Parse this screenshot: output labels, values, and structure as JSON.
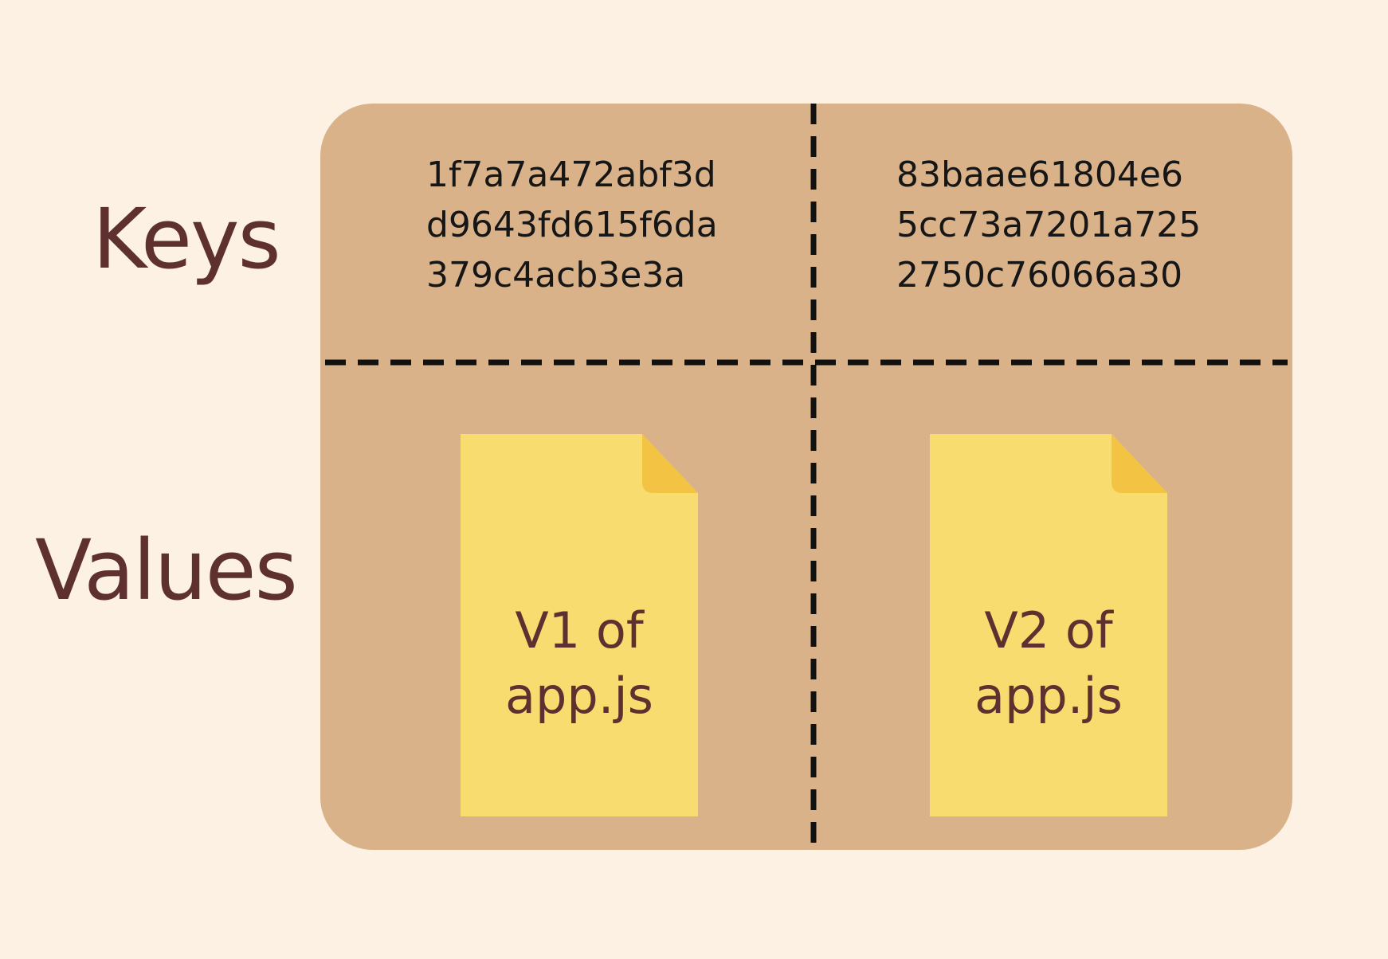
{
  "labels": {
    "keys": "Keys",
    "values": "Values"
  },
  "columns": [
    {
      "hashes": [
        "1f7a7a472abf3d",
        "d9643fd615f6da",
        "379c4acb3e3a"
      ],
      "file": {
        "line1": "V1 of",
        "line2": "app.js"
      }
    },
    {
      "hashes": [
        "83baae61804e6",
        "5cc73a7201a725",
        "2750c76066a30"
      ],
      "file": {
        "line1": "V2 of",
        "line2": "app.js"
      }
    }
  ],
  "colors": {
    "background": "#fcf1e3",
    "board": "#d9b289",
    "label_text": "#5e3030",
    "hash_text": "#161616",
    "file_body": "#f9dc70",
    "file_fold": "#f3c443",
    "divider": "#111111"
  },
  "icons": {
    "file": "file-document-icon"
  }
}
